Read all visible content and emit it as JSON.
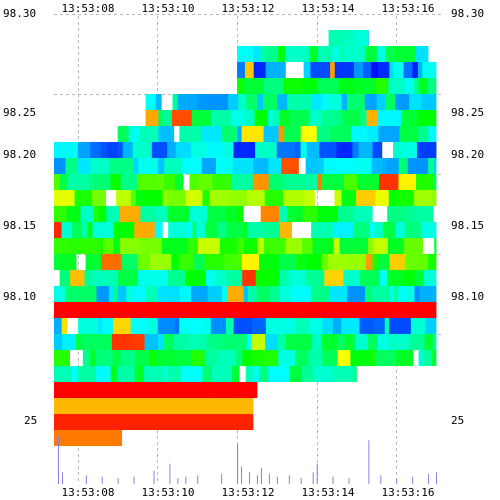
{
  "chart_data": {
    "type": "heatmap",
    "title": "",
    "x_ticks": [
      "13:53:08",
      "13:53:10",
      "13:53:12",
      "13:53:14",
      "13:53:16"
    ],
    "x_tick_seconds": [
      8,
      10,
      12,
      14,
      16
    ],
    "x_range_seconds": [
      7.4,
      17.2
    ],
    "y_ticks": [
      "98.30",
      "98.25",
      "98.20",
      "98.15",
      "98.10"
    ],
    "y_tick_values": [
      98.3,
      98.25,
      98.2,
      98.15,
      98.1
    ],
    "y_range": [
      98.0525,
      98.3
    ],
    "size_label": "25",
    "grid": true,
    "color_scale": [
      "#0000ff",
      "#00ffff",
      "#00ff00",
      "#ffff00",
      "#ff8800",
      "#ff0000"
    ],
    "heatmap_rows": [
      {
        "price": 98.285,
        "x0": 14.3,
        "x1": 15.3,
        "level": 0.25
      },
      {
        "price": 98.275,
        "x0": 12.0,
        "x1": 16.8,
        "level": 0.28
      },
      {
        "price": 98.265,
        "x0": 12.0,
        "x1": 17.0,
        "level": 0.12
      },
      {
        "price": 98.255,
        "x0": 12.0,
        "x1": 17.0,
        "level": 0.32
      },
      {
        "price": 98.245,
        "x0": 9.7,
        "x1": 17.0,
        "level": 0.22
      },
      {
        "price": 98.235,
        "x0": 9.7,
        "x1": 17.0,
        "level": 0.3
      },
      {
        "price": 98.225,
        "x0": 9.0,
        "x1": 17.0,
        "level": 0.24
      },
      {
        "price": 98.215,
        "x0": 7.4,
        "x1": 17.0,
        "level": 0.14
      },
      {
        "price": 98.205,
        "x0": 7.4,
        "x1": 17.0,
        "level": 0.2
      },
      {
        "price": 98.195,
        "x0": 7.4,
        "x1": 17.0,
        "level": 0.38
      },
      {
        "price": 98.185,
        "x0": 7.4,
        "x1": 17.0,
        "level": 0.48
      },
      {
        "price": 98.175,
        "x0": 7.4,
        "x1": 17.0,
        "level": 0.34
      },
      {
        "price": 98.165,
        "x0": 7.4,
        "x1": 17.0,
        "level": 0.3
      },
      {
        "price": 98.155,
        "x0": 7.4,
        "x1": 17.0,
        "level": 0.46
      },
      {
        "price": 98.145,
        "x0": 7.4,
        "x1": 17.0,
        "level": 0.42
      },
      {
        "price": 98.135,
        "x0": 7.4,
        "x1": 17.0,
        "level": 0.3
      },
      {
        "price": 98.125,
        "x0": 7.4,
        "x1": 17.0,
        "level": 0.22
      },
      {
        "price": 98.115,
        "x0": 7.4,
        "x1": 17.0,
        "level": 1.0
      },
      {
        "price": 98.105,
        "x0": 7.4,
        "x1": 17.0,
        "level": 0.16
      },
      {
        "price": 98.095,
        "x0": 7.4,
        "x1": 17.0,
        "level": 0.26
      },
      {
        "price": 98.085,
        "x0": 7.4,
        "x1": 17.0,
        "level": 0.32
      },
      {
        "price": 98.075,
        "x0": 7.4,
        "x1": 15.0,
        "level": 0.28
      },
      {
        "price": 98.065,
        "x0": 7.4,
        "x1": 12.5,
        "level": 1.0
      },
      {
        "price": 98.055,
        "x0": 7.4,
        "x1": 12.4,
        "level": 0.72
      },
      {
        "price": 98.045,
        "x0": 7.4,
        "x1": 12.4,
        "level": 0.95
      },
      {
        "price": 98.035,
        "x0": 7.4,
        "x1": 9.1,
        "level": 0.82
      }
    ],
    "volume_bars": [
      {
        "t": 7.5,
        "v": 33
      },
      {
        "t": 7.6,
        "v": 8
      },
      {
        "t": 8.2,
        "v": 6
      },
      {
        "t": 8.6,
        "v": 5
      },
      {
        "t": 9.0,
        "v": 4
      },
      {
        "t": 9.4,
        "v": 5
      },
      {
        "t": 9.9,
        "v": 9
      },
      {
        "t": 10.3,
        "v": 14
      },
      {
        "t": 10.5,
        "v": 4
      },
      {
        "t": 10.7,
        "v": 5
      },
      {
        "t": 11.0,
        "v": 6
      },
      {
        "t": 11.6,
        "v": 7
      },
      {
        "t": 12.0,
        "v": 27
      },
      {
        "t": 12.1,
        "v": 12
      },
      {
        "t": 12.3,
        "v": 8
      },
      {
        "t": 12.5,
        "v": 6
      },
      {
        "t": 12.6,
        "v": 11
      },
      {
        "t": 12.8,
        "v": 7
      },
      {
        "t": 13.0,
        "v": 5
      },
      {
        "t": 13.3,
        "v": 6
      },
      {
        "t": 13.6,
        "v": 4
      },
      {
        "t": 13.9,
        "v": 8
      },
      {
        "t": 14.0,
        "v": 14
      },
      {
        "t": 14.4,
        "v": 5
      },
      {
        "t": 14.8,
        "v": 4
      },
      {
        "t": 15.3,
        "v": 30
      },
      {
        "t": 15.6,
        "v": 6
      },
      {
        "t": 16.0,
        "v": 4
      },
      {
        "t": 16.4,
        "v": 5
      },
      {
        "t": 16.8,
        "v": 7
      },
      {
        "t": 17.0,
        "v": 8
      }
    ]
  }
}
